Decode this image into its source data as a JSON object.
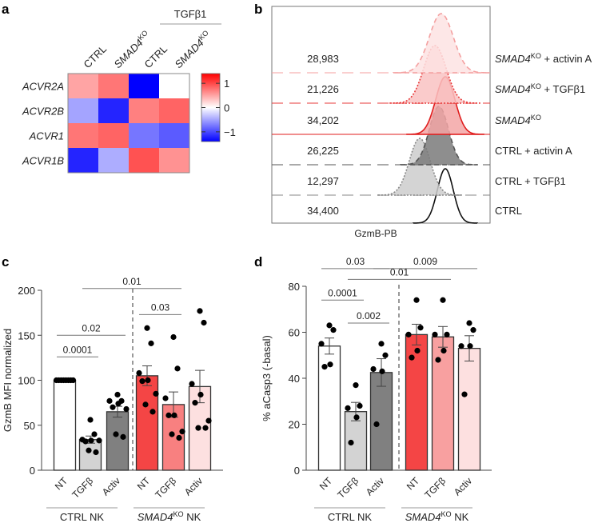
{
  "panel_labels": {
    "a": "a",
    "b": "b",
    "c": "c",
    "d": "d"
  },
  "chart_data": [
    {
      "panel": "a",
      "type": "heatmap",
      "columns": [
        {
          "text": "CTRL",
          "sup": ""
        },
        {
          "text": "SMAD4",
          "sup": "KO"
        },
        {
          "text": "CTRL",
          "sup": ""
        },
        {
          "text": "SMAD4",
          "sup": "KO"
        }
      ],
      "column_group": {
        "label": "TGFβ1",
        "columns": [
          2,
          3
        ]
      },
      "rows": [
        "ACVR2A",
        "ACVR2B",
        "ACVR1",
        "ACVR1B"
      ],
      "values": [
        [
          0.5,
          0.75,
          -1.4,
          0.0
        ],
        [
          -0.5,
          -1.2,
          0.7,
          0.85
        ],
        [
          0.75,
          0.85,
          -0.75,
          -0.9
        ],
        [
          -1.2,
          -0.45,
          0.95,
          0.6
        ]
      ],
      "colorbar": {
        "range": [
          -1.4,
          1.4
        ],
        "ticks": [
          1,
          0,
          -1
        ],
        "tick_labels": [
          "1",
          "0",
          "−1"
        ],
        "low": "#0000ff",
        "mid": "#ffffff",
        "high": "#ff0000"
      }
    },
    {
      "panel": "b",
      "type": "histogram-overlay",
      "xlabel": "GzmB-PB",
      "tracks": [
        {
          "main": "SMAD4",
          "sup": "KO",
          "rest": " + activin A",
          "italic": true,
          "mfi": "28,983",
          "fill": "#fde3e3",
          "stroke": "#f4a0a0",
          "style": "dashed"
        },
        {
          "main": "SMAD4",
          "sup": "KO",
          "rest": " + TGFβ1",
          "italic": true,
          "mfi": "21,226",
          "fill": "#f9c2c2",
          "stroke": "#e83a3a",
          "style": "dotted"
        },
        {
          "main": "SMAD4",
          "sup": "KO",
          "rest": "",
          "italic": true,
          "mfi": "34,202",
          "fill": "#f3a6a6",
          "stroke": "#e01e1e",
          "style": "solid"
        },
        {
          "main": "CTRL",
          "sup": "",
          "rest": " + activin A",
          "italic": false,
          "mfi": "26,225",
          "fill": "#7a7a7a",
          "stroke": "#555555",
          "style": "dashed"
        },
        {
          "main": "CTRL",
          "sup": "",
          "rest": " + TGFβ1",
          "italic": false,
          "mfi": "12,297",
          "fill": "#cccccc",
          "stroke": "#888888",
          "style": "dotted"
        },
        {
          "main": "CTRL",
          "sup": "",
          "rest": "",
          "italic": false,
          "mfi": "34,400",
          "fill": "none",
          "stroke": "#111111",
          "style": "solid"
        }
      ]
    },
    {
      "panel": "c",
      "type": "bar",
      "ylabel": "GzmB MFI normalized",
      "ylim": [
        0,
        200
      ],
      "yticks": [
        0,
        50,
        100,
        150,
        200
      ],
      "categories": [
        "NT",
        "TGFβ",
        "Activ",
        "NT",
        "TGFβ",
        "Activ"
      ],
      "groups": [
        {
          "main": "CTRL",
          "sup": "",
          "rest": " NK",
          "italic": false
        },
        {
          "main": "SMAD4",
          "sup": "KO",
          "rest": " NK",
          "italic": true
        }
      ],
      "values": [
        100,
        34,
        65,
        105,
        73,
        93
      ],
      "errors": [
        0.5,
        4,
        6,
        11,
        14,
        18
      ],
      "colors": [
        "#ffffff",
        "#d3d3d3",
        "#808080",
        "#f44545",
        "#f88080",
        "#fde0e0"
      ],
      "points": [
        [
          100,
          100,
          100,
          100,
          100,
          100,
          100,
          100
        ],
        [
          56,
          40,
          34,
          33,
          32,
          33,
          22,
          20
        ],
        [
          84,
          77,
          77,
          74,
          70,
          68,
          40,
          37
        ],
        [
          158,
          141,
          108,
          100,
          99,
          85,
          73,
          65
        ],
        [
          148,
          113,
          80,
          61,
          61,
          43,
          40,
          36
        ],
        [
          177,
          164,
          96,
          84,
          75,
          55,
          47,
          47
        ]
      ],
      "comparisons": [
        {
          "from": 1,
          "to": 4,
          "label": "0.01",
          "y": 202
        },
        {
          "from": 3,
          "to": 4,
          "label": "0.03",
          "y": 173
        },
        {
          "from": 0,
          "to": 2,
          "label": "0.02",
          "y": 150
        },
        {
          "from": 0,
          "to": 1,
          "label": "0.0001",
          "y": 126
        }
      ]
    },
    {
      "panel": "d",
      "type": "bar",
      "ylabel": "% aCasp3 (-basal)",
      "ylim": [
        0,
        80
      ],
      "yticks": [
        0,
        20,
        40,
        60,
        80
      ],
      "categories": [
        "NT",
        "TGFβ",
        "Activ",
        "NT",
        "TGFβ",
        "Activ"
      ],
      "groups": [
        {
          "main": "CTRL",
          "sup": "",
          "rest": " NK",
          "italic": false
        },
        {
          "main": "SMAD4",
          "sup": "KO",
          "rest": " NK",
          "italic": true
        }
      ],
      "values": [
        54,
        25.5,
        42.5,
        59,
        58,
        53
      ],
      "errors": [
        3.5,
        4,
        6,
        4.5,
        4.5,
        5.5
      ],
      "colors": [
        "#ffffff",
        "#d3d3d3",
        "#808080",
        "#f44545",
        "#f8a0a0",
        "#fde0e0"
      ],
      "points": [
        [
          63,
          61,
          55,
          46,
          45
        ],
        [
          37,
          28,
          27,
          23,
          12
        ],
        [
          55,
          50,
          44,
          43,
          20
        ],
        [
          74,
          62,
          59,
          52,
          49
        ],
        [
          74,
          59,
          59,
          52,
          48
        ],
        [
          64,
          61,
          54,
          54,
          33
        ]
      ],
      "comparisons": [
        {
          "from": 0,
          "to": 2,
          "label": "0.03",
          "y": 87.7
        },
        {
          "from": 2,
          "to": 5,
          "label": "0.009",
          "y": 87.7
        },
        {
          "from": 1,
          "to": 4,
          "label": "0.01",
          "y": 83
        },
        {
          "from": 0,
          "to": 1,
          "label": "0.0001",
          "y": 74
        },
        {
          "from": 1,
          "to": 2,
          "label": "0.002",
          "y": 64
        }
      ]
    }
  ]
}
